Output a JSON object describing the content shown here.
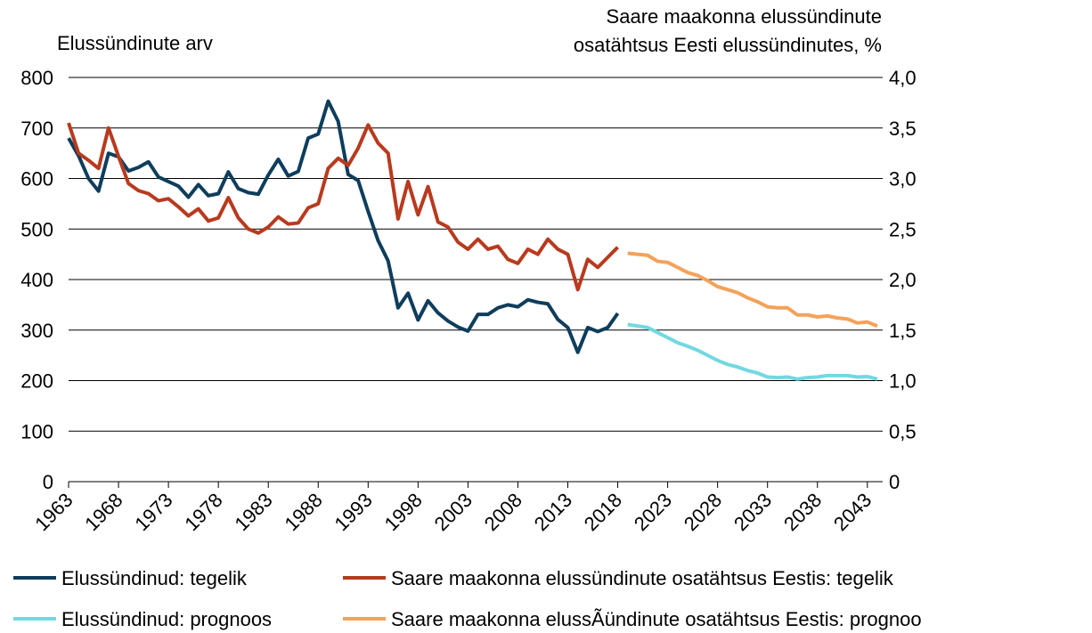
{
  "chart_data": {
    "type": "line",
    "ylabel": "Elussündinute arv",
    "y2label": [
      "Saare maakonna elussündinute",
      "osatähtsus Eesti elussündinutes, %"
    ],
    "x": [
      1963,
      1964,
      1965,
      1966,
      1967,
      1968,
      1969,
      1970,
      1971,
      1972,
      1973,
      1974,
      1975,
      1976,
      1977,
      1978,
      1979,
      1980,
      1981,
      1982,
      1983,
      1984,
      1985,
      1986,
      1987,
      1988,
      1989,
      1990,
      1991,
      1992,
      1993,
      1994,
      1995,
      1996,
      1997,
      1998,
      1999,
      2000,
      2001,
      2002,
      2003,
      2004,
      2005,
      2006,
      2007,
      2008,
      2009,
      2010,
      2011,
      2012,
      2013,
      2014,
      2015,
      2016,
      2017,
      2018,
      2019,
      2020,
      2021,
      2022,
      2023,
      2024,
      2025,
      2026,
      2027,
      2028,
      2029,
      2030,
      2031,
      2032,
      2033,
      2034,
      2035,
      2036,
      2037,
      2038,
      2039,
      2040,
      2041,
      2042,
      2043,
      2044
    ],
    "xlim": [
      1963,
      2044
    ],
    "xticks": [
      1963,
      1968,
      1973,
      1978,
      1983,
      1988,
      1993,
      1998,
      2003,
      2008,
      2013,
      2018,
      2023,
      2028,
      2033,
      2038,
      2043
    ],
    "ylim": [
      0,
      800
    ],
    "yticks": [
      0,
      100,
      200,
      300,
      400,
      500,
      600,
      700,
      800
    ],
    "y2lim": [
      0,
      4
    ],
    "y2ticks": [
      {
        "value": 0,
        "label": "0"
      },
      {
        "value": 0.5,
        "label": "0,5"
      },
      {
        "value": 1,
        "label": "1,0"
      },
      {
        "value": 1.5,
        "label": "1,5"
      },
      {
        "value": 2,
        "label": "2,0"
      },
      {
        "value": 2.5,
        "label": "2,5"
      },
      {
        "value": 3,
        "label": "3,0"
      },
      {
        "value": 3.5,
        "label": "3,5"
      },
      {
        "value": 4,
        "label": "4,0"
      }
    ],
    "grid": true,
    "legend": "bottom",
    "series": [
      {
        "name": "Elussündinud: tegelik",
        "color": "#0f3d5c",
        "axis": "y",
        "values": [
          680,
          645,
          600,
          575,
          650,
          643,
          615,
          622,
          633,
          603,
          594,
          585,
          563,
          588,
          566,
          570,
          613,
          580,
          572,
          569,
          607,
          638,
          605,
          614,
          680,
          688,
          753,
          713,
          608,
          596,
          535,
          477,
          437,
          344,
          373,
          320,
          358,
          334,
          318,
          306,
          298,
          331,
          331,
          344,
          350,
          346,
          360,
          355,
          352,
          321,
          305,
          256,
          305,
          297,
          305,
          333,
          null,
          null,
          null,
          null,
          null,
          null,
          null,
          null,
          null,
          null,
          null,
          null,
          null,
          null,
          null,
          null,
          null,
          null,
          null,
          null,
          null,
          null,
          null,
          null,
          null,
          null
        ]
      },
      {
        "name": "Saare maakonna elussündinute osatähtsus Eestis: tegelik",
        "color": "#b83a1e",
        "axis": "y2",
        "values": [
          3.55,
          3.25,
          3.18,
          3.1,
          3.5,
          3.22,
          2.95,
          2.88,
          2.85,
          2.78,
          2.8,
          2.72,
          2.63,
          2.7,
          2.58,
          2.61,
          2.81,
          2.61,
          2.5,
          2.46,
          2.52,
          2.62,
          2.55,
          2.56,
          2.71,
          2.75,
          3.1,
          3.2,
          3.13,
          3.3,
          3.53,
          3.35,
          3.25,
          2.6,
          2.97,
          2.64,
          2.92,
          2.57,
          2.52,
          2.37,
          2.3,
          2.4,
          2.3,
          2.33,
          2.2,
          2.16,
          2.3,
          2.25,
          2.4,
          2.3,
          2.25,
          1.9,
          2.2,
          2.12,
          2.22,
          2.32,
          null,
          null,
          null,
          null,
          null,
          null,
          null,
          null,
          null,
          null,
          null,
          null,
          null,
          null,
          null,
          null,
          null,
          null,
          null,
          null,
          null,
          null,
          null,
          null,
          null,
          null
        ]
      },
      {
        "name": "Elussündinud: prognoos",
        "color": "#72d8e0",
        "axis": "y",
        "values": [
          null,
          null,
          null,
          null,
          null,
          null,
          null,
          null,
          null,
          null,
          null,
          null,
          null,
          null,
          null,
          null,
          null,
          null,
          null,
          null,
          null,
          null,
          null,
          null,
          null,
          null,
          null,
          null,
          null,
          null,
          null,
          null,
          null,
          null,
          null,
          null,
          null,
          null,
          null,
          null,
          null,
          null,
          null,
          null,
          null,
          null,
          null,
          null,
          null,
          null,
          null,
          null,
          null,
          null,
          null,
          null,
          311,
          308,
          305,
          295,
          285,
          275,
          268,
          260,
          250,
          240,
          232,
          227,
          220,
          215,
          207,
          206,
          207,
          203,
          206,
          207,
          210,
          210,
          210,
          207,
          208,
          203
        ]
      },
      {
        "name": "Saare maakonna elussÃündinute osatähtsus Eestis: prognoo",
        "color": "#f4a25a",
        "axis": "y2",
        "values": [
          null,
          null,
          null,
          null,
          null,
          null,
          null,
          null,
          null,
          null,
          null,
          null,
          null,
          null,
          null,
          null,
          null,
          null,
          null,
          null,
          null,
          null,
          null,
          null,
          null,
          null,
          null,
          null,
          null,
          null,
          null,
          null,
          null,
          null,
          null,
          null,
          null,
          null,
          null,
          null,
          null,
          null,
          null,
          null,
          null,
          null,
          null,
          null,
          null,
          null,
          null,
          null,
          null,
          null,
          null,
          null,
          2.26,
          2.25,
          2.24,
          2.18,
          2.17,
          2.12,
          2.07,
          2.04,
          1.99,
          1.93,
          1.9,
          1.87,
          1.82,
          1.78,
          1.73,
          1.72,
          1.72,
          1.65,
          1.65,
          1.63,
          1.64,
          1.62,
          1.61,
          1.57,
          1.58,
          1.54
        ]
      }
    ]
  }
}
